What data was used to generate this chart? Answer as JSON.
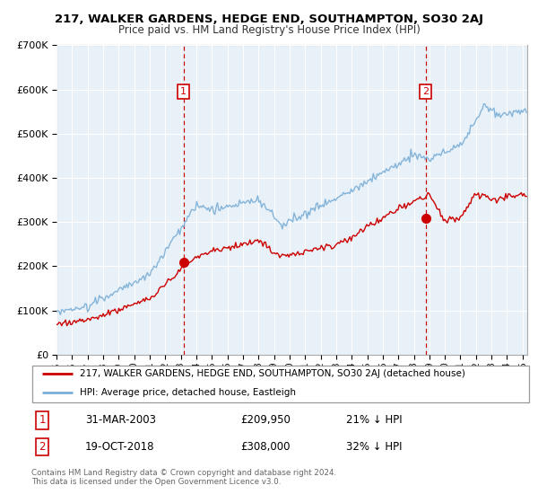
{
  "title": "217, WALKER GARDENS, HEDGE END, SOUTHAMPTON, SO30 2AJ",
  "subtitle": "Price paid vs. HM Land Registry's House Price Index (HPI)",
  "legend_label_red": "217, WALKER GARDENS, HEDGE END, SOUTHAMPTON, SO30 2AJ (detached house)",
  "legend_label_blue": "HPI: Average price, detached house, Eastleigh",
  "sale1_date": "31-MAR-2003",
  "sale1_price": 209950,
  "sale1_hpi_pct": "21% ↓ HPI",
  "sale2_date": "19-OCT-2018",
  "sale2_price": 308000,
  "sale2_hpi_pct": "32% ↓ HPI",
  "footer": "Contains HM Land Registry data © Crown copyright and database right 2024.\nThis data is licensed under the Open Government Licence v3.0.",
  "red_color": "#cc0000",
  "blue_color": "#7aaed6",
  "vline_color": "#cc0000",
  "chart_bg": "#e8f0f8",
  "ylim": [
    0,
    700000
  ],
  "xlim_start": 1995.0,
  "xlim_end": 2025.3
}
